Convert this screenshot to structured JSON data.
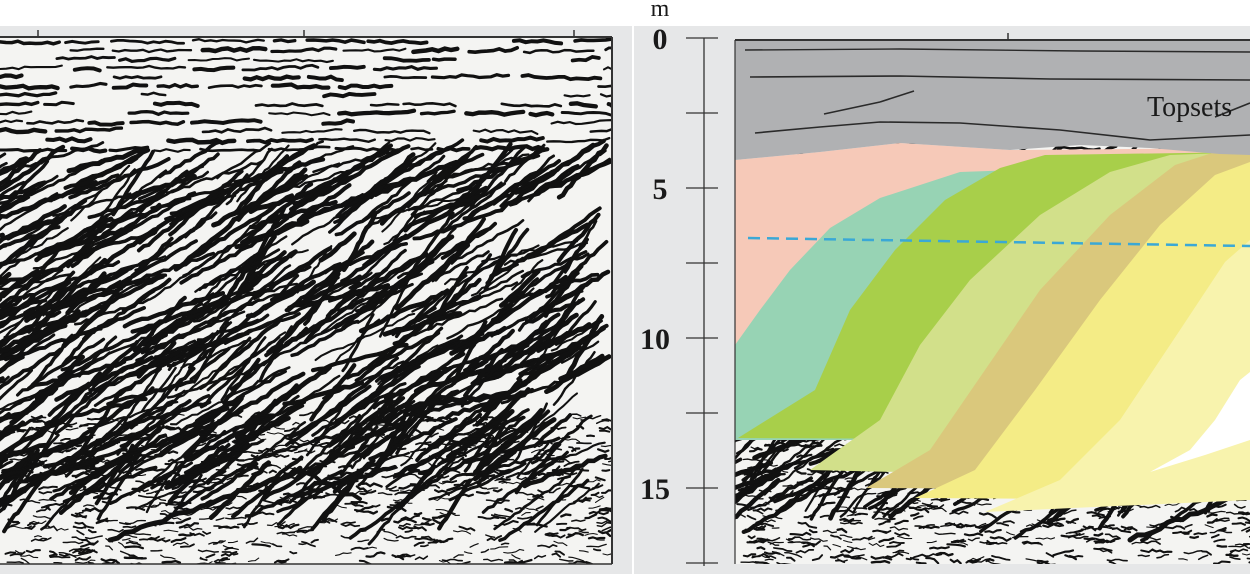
{
  "depth_axis": {
    "unit": "m",
    "ticks": [
      "0",
      "5",
      "10",
      "15"
    ]
  },
  "labels": {
    "topsets": "Topsets"
  },
  "colors": {
    "background_panel": "#e6e7e8",
    "topsets": "#b0b1b3",
    "unit_pink": "#f6c9b8",
    "unit_teal": "#97d3b4",
    "unit_green": "#a8cf4a",
    "unit_light_green": "#d2e08a",
    "unit_tan": "#dac87c",
    "unit_yellow": "#f4ec86",
    "unit_pale_yellow": "#f8f3ad",
    "unit_white": "#ffffff",
    "dashed_line": "#3aa8d6",
    "seismic_ink": "#111111"
  },
  "panels": [
    {
      "name": "seismic-profile-uninterpreted"
    },
    {
      "name": "seismic-profile-interpreted"
    }
  ]
}
